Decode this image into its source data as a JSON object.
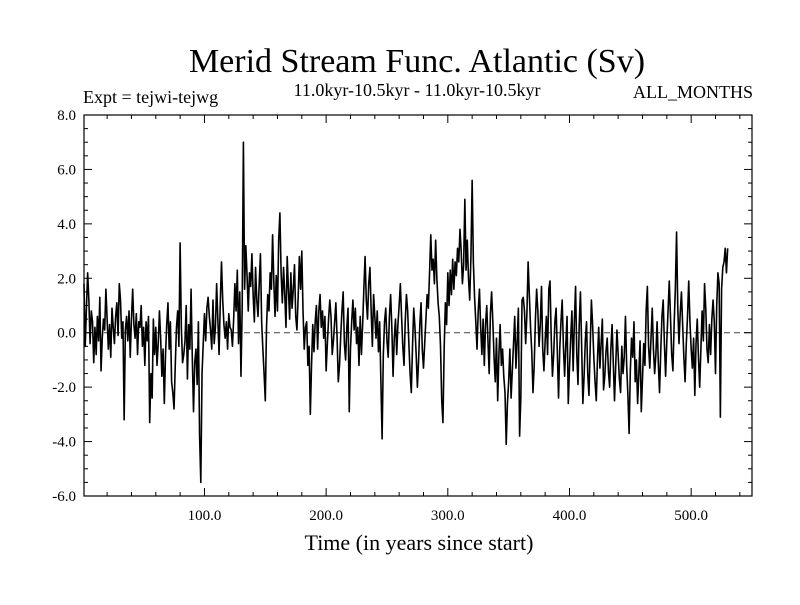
{
  "chart_data": {
    "type": "line",
    "title": "Merid Stream Func. Atlantic (Sv)",
    "subtitle_left": "Expt = tejwi-tejwg",
    "subtitle_center": "11.0kyr-10.5kyr - 11.0kyr-10.5kyr",
    "subtitle_right": "ALL_MONTHS",
    "xlabel": "Time (in years since start)",
    "ylabel": "",
    "xlim": [
      1,
      550
    ],
    "ylim": [
      -6.0,
      8.0
    ],
    "x_ticks": [
      100,
      200,
      300,
      400,
      500
    ],
    "x_tick_labels": [
      "100.0",
      "200.0",
      "300.0",
      "400.0",
      "500.0"
    ],
    "y_ticks": [
      -6,
      -4,
      -2,
      0,
      2,
      4,
      6,
      8
    ],
    "y_tick_labels": [
      "-6.0",
      "-4.0",
      "-2.0",
      "0.0",
      "2.0",
      "4.0",
      "6.0",
      "8.0"
    ],
    "zero_line": true,
    "series": [
      {
        "name": "Merid Stream Func. Atlantic",
        "x_start": 1,
        "x_step": 1,
        "values": [
          1.8,
          -0.5,
          0.9,
          2.2,
          1.2,
          -0.4,
          0.8,
          0.4,
          -1.1,
          0.2,
          -0.8,
          0.6,
          -0.3,
          1.3,
          -1.4,
          -0.2,
          0.5,
          0.1,
          1.6,
          0.5,
          -0.6,
          0.3,
          -0.9,
          0.9,
          0.2,
          -0.4,
          0.6,
          1.1,
          -0.1,
          1.8,
          1.2,
          -0.2,
          0.4,
          -3.2,
          0.1,
          0.6,
          -0.3,
          0.8,
          -0.9,
          0.5,
          1.6,
          0.3,
          -0.2,
          0.7,
          -0.8,
          0.4,
          0.2,
          1.0,
          -0.5,
          0.2,
          -1.2,
          0.4,
          -0.3,
          0.6,
          -3.3,
          -1.5,
          -2.4,
          0.5,
          -0.8,
          0.2,
          -1.2,
          -0.4,
          0.8,
          -0.2,
          -1.6,
          -0.6,
          -2.6,
          -0.8,
          0.3,
          1.1,
          -0.6,
          0.4,
          -1.8,
          -2.2,
          -2.8,
          -1.2,
          0.2,
          0.8,
          -0.5,
          3.3,
          0.2,
          -1.1,
          -0.8,
          -0.3,
          1.0,
          -1.7,
          0.3,
          -0.6,
          1.6,
          -0.9,
          -2.9,
          -1.1,
          -0.6,
          -1.9,
          0.4,
          -3.8,
          -5.5,
          -1.5,
          -0.4,
          0.7,
          -0.3,
          0.9,
          1.3,
          0.6,
          0.1,
          -0.6,
          1.2,
          -0.4,
          0.2,
          1.8,
          0.5,
          -0.8,
          1.1,
          2.6,
          1.2,
          0.3,
          -0.2,
          0.4,
          -0.6,
          0.7,
          0.2,
          0.1,
          -0.5,
          0.5,
          1.8,
          0.8,
          2.3,
          -0.4,
          1.5,
          -1.6,
          0.9,
          7.0,
          1.6,
          3.2,
          2.1,
          0.8,
          2.2,
          1.7,
          2.9,
          1.4,
          0.4,
          2.4,
          1.2,
          0.6,
          1.8,
          2.9,
          0.4,
          -0.6,
          -1.5,
          -2.5,
          0.2,
          1.4,
          0.8,
          2.2,
          1.6,
          3.6,
          1.9,
          0.6,
          2.1,
          0.8,
          3.4,
          4.4,
          2.2,
          1.1,
          2.4,
          1.4,
          0.2,
          2.8,
          1.6,
          0.5,
          2.2,
          0.9,
          1.6,
          2.5,
          0.6,
          0.1,
          1.3,
          2.8,
          1.6,
          3.0,
          0.8,
          -0.6,
          0.2,
          0.4,
          -1.2,
          -0.5,
          -3.0,
          -1.2,
          0.3,
          -0.7,
          0.4,
          1.0,
          -0.6,
          0.8,
          1.4,
          0.2,
          0.8,
          -0.2,
          0.6,
          -1.4,
          -0.4,
          0.5,
          1.2,
          0.6,
          -0.8,
          -0.3,
          0.4,
          1.1,
          -0.2,
          -1.8,
          -1.2,
          -0.1,
          0.8,
          1.5,
          -0.4,
          -1.0,
          0.2,
          0.9,
          -2.9,
          -0.6,
          0.4,
          1.2,
          0.1,
          0.9,
          -0.4,
          0.2,
          -1.2,
          0.6,
          -0.8,
          0.3,
          1.6,
          2.8,
          1.2,
          0.5,
          1.8,
          2.4,
          0.8,
          -0.5,
          1.4,
          0.6,
          -0.2,
          0.8,
          -0.7,
          0.4,
          -1.8,
          -3.9,
          -0.8,
          0.4,
          0.9,
          -0.3,
          -0.9,
          0.6,
          1.4,
          0.2,
          -1.6,
          -0.2,
          0.5,
          -0.8,
          0.3,
          1.0,
          1.8,
          0.6,
          -0.5,
          -1.2,
          0.4,
          1.4,
          0.8,
          -0.4,
          -1.5,
          -2.2,
          -0.5,
          0.9,
          0.2,
          -0.8,
          -2.0,
          -1.0,
          0.3,
          1.1,
          -0.6,
          -1.3,
          -0.4,
          0.5,
          1.4,
          0.9,
          2.2,
          3.6,
          2.3,
          2.7,
          1.8,
          3.4,
          2.0,
          1.1,
          0.6,
          -0.5,
          -2.5,
          -3.3,
          -0.6,
          1.1,
          0.3,
          2.2,
          1.0,
          2.3,
          1.4,
          2.7,
          1.6,
          2.6,
          2.1,
          3.1,
          2.6,
          3.8,
          3.0,
          1.8,
          2.5,
          4.9,
          2.3,
          3.4,
          2.0,
          1.2,
          2.8,
          5.6,
          2.6,
          1.3,
          0.4,
          -0.6,
          0.8,
          1.6,
          0.2,
          -0.8,
          0.5,
          -1.2,
          0.3,
          1.0,
          -0.3,
          -1.5,
          0.7,
          1.5,
          0.4,
          -0.9,
          -1.8,
          -0.2,
          -2.5,
          -0.8,
          0.3,
          -1.2,
          -0.6,
          -1.6,
          -2.2,
          -4.1,
          -2.6,
          -1.8,
          -0.6,
          -2.4,
          -1.4,
          -0.4,
          0.6,
          -1.3,
          -0.3,
          0.9,
          -3.8,
          -2.4,
          1.2,
          1.3,
          0.8,
          -0.4,
          0.7,
          2.6,
          1.4,
          0.2,
          -0.7,
          -2.2,
          -1.2,
          0.5,
          1.6,
          0.8,
          -0.5,
          0.3,
          1.7,
          -0.6,
          -1.4,
          -0.3,
          0.6,
          -0.8,
          1.6,
          1.9,
          -0.2,
          -1.6,
          -0.8,
          0.4,
          0.9,
          -0.7,
          -2.4,
          -0.6,
          0.4,
          1.2,
          -0.5,
          -1.6,
          -0.4,
          0.6,
          -2.6,
          -1.3,
          -0.2,
          0.8,
          -1.4,
          0.4,
          1.7,
          -0.8,
          -1.9,
          0.3,
          1.5,
          -0.5,
          -2.6,
          -1.6,
          -0.3,
          0.4,
          -1.5,
          -2.3,
          -0.6,
          1.2,
          0.3,
          -0.9,
          -1.8,
          -2.5,
          -1.0,
          0.2,
          -1.3,
          -0.4,
          0.5,
          -2.1,
          -1.6,
          -0.7,
          -0.2,
          -1.4,
          -2.0,
          -0.6,
          0.3,
          -1.1,
          -2.5,
          -1.2,
          0.1,
          -0.8,
          -1.7,
          -2.2,
          -0.5,
          -1.5,
          -0.9,
          0.6,
          -1.2,
          -2.3,
          -3.7,
          -1.4,
          -0.2,
          -0.9,
          0.4,
          -1.8,
          -1.0,
          -2.6,
          -1.5,
          -0.3,
          -2.9,
          -1.7,
          -0.4,
          -1.2,
          0.8,
          1.7,
          -0.5,
          -1.3,
          -0.2,
          0.9,
          -0.6,
          -1.5,
          -0.8,
          0.4,
          -1.1,
          -2.2,
          -0.7,
          0.6,
          1.2,
          -0.4,
          -1.6,
          -0.3,
          0.8,
          1.9,
          0.6,
          -0.8,
          -1.4,
          0.3,
          1.6,
          3.7,
          0.9,
          -0.4,
          0.7,
          1.5,
          0.3,
          -0.9,
          -1.8,
          -0.4,
          0.6,
          1.9,
          0.4,
          -0.6,
          -1.3,
          -0.2,
          -2.3,
          -0.4,
          0.5,
          -0.9,
          -2.0,
          -0.6,
          0.8,
          -0.3,
          1.8,
          0.9,
          -0.6,
          -1.1,
          0.3,
          -0.8,
          0.5,
          1.2,
          0.4,
          -1.5,
          1.0,
          2.2,
          1.8,
          -3.1,
          1.6,
          2.4,
          2.6,
          3.1,
          2.2,
          3.1
        ]
      }
    ]
  }
}
